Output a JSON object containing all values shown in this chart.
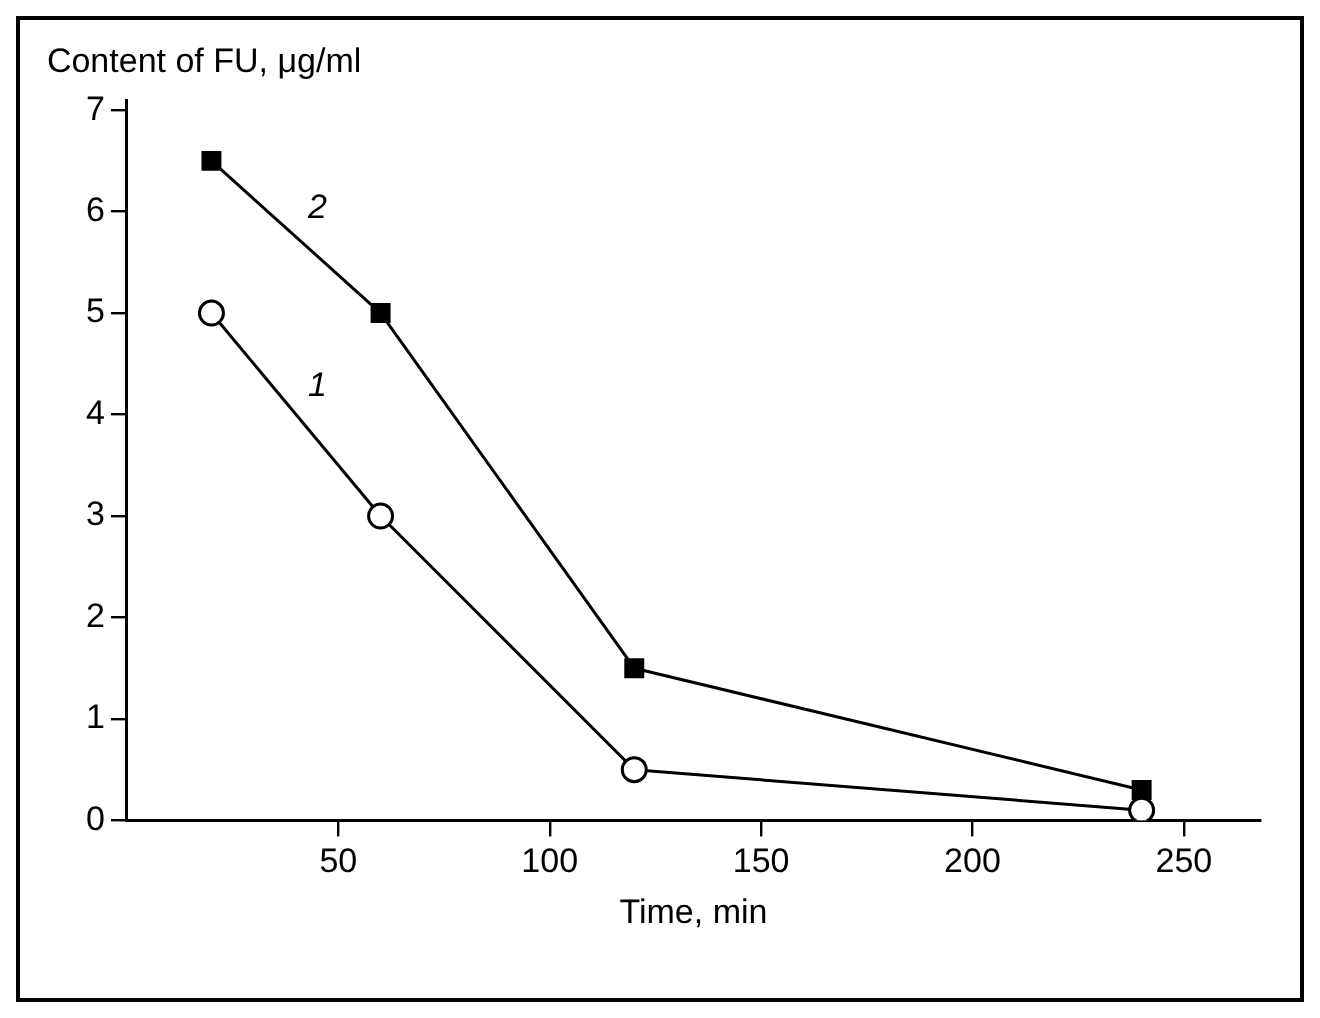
{
  "chart_data": {
    "type": "line",
    "xlabel": "Time, min",
    "ylabel": "Content of FU, μg/ml",
    "xlim": [
      0,
      268
    ],
    "xticks": [
      50,
      100,
      150,
      200,
      250
    ],
    "ylim": [
      0,
      7.1
    ],
    "yticks": [
      0,
      1,
      2,
      3,
      4,
      5,
      6,
      7
    ],
    "grid": false,
    "legend": false,
    "line_style": "solid",
    "series": [
      {
        "name": "1",
        "color": "#000000",
        "marker": "circle",
        "x": [
          20,
          60,
          120,
          240
        ],
        "values": [
          5,
          3,
          0.5,
          0.1
        ]
      },
      {
        "name": "2",
        "color": "#000000",
        "marker": "square",
        "x": [
          20,
          60,
          120,
          240
        ],
        "values": [
          6.5,
          5,
          1.5,
          0.3
        ]
      }
    ]
  }
}
